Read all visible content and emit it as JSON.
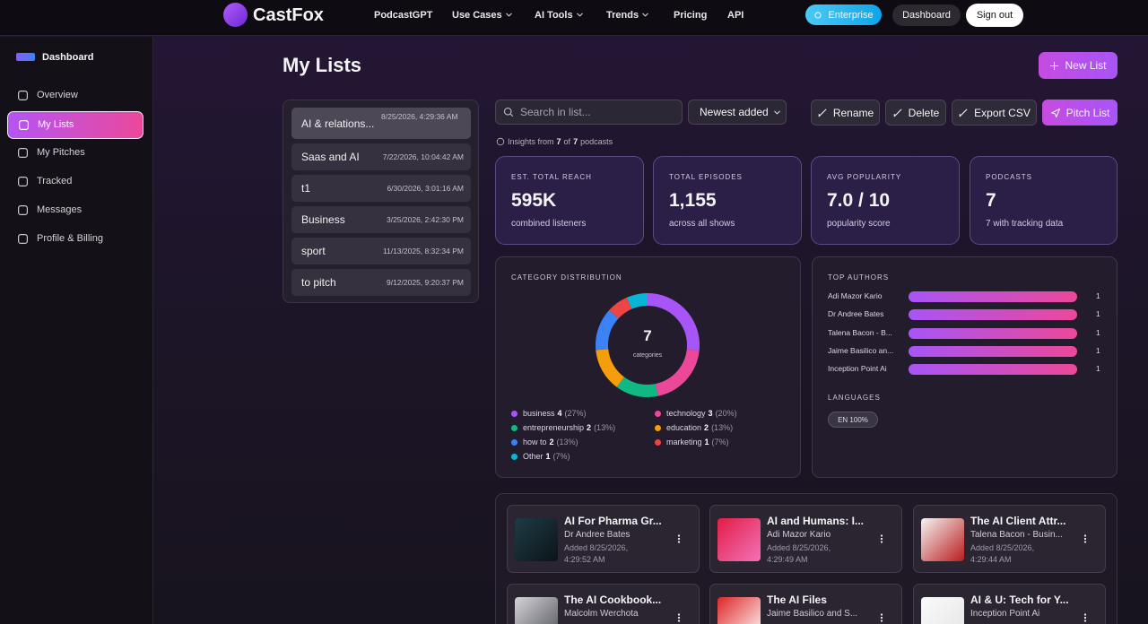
{
  "nav": {
    "brand": "CastFox",
    "links": [
      "PodcastGPT",
      "Use Cases",
      "AI Tools",
      "Trends",
      "Pricing",
      "API"
    ],
    "enterprise": "Enterprise",
    "dashboard": "Dashboard",
    "sign_out": "Sign out"
  },
  "sidebar": {
    "title": "Dashboard",
    "items": [
      "Overview",
      "My Lists",
      "My Pitches",
      "Tracked",
      "Messages",
      "Profile & Billing"
    ]
  },
  "header": {
    "title": "My Lists",
    "new_list": "New List"
  },
  "lists": [
    {
      "name": "AI & relations...",
      "date": "8/25/2026, 4:29:36 AM"
    },
    {
      "name": "Saas and AI",
      "date": "7/22/2026, 10:04:42 AM"
    },
    {
      "name": "t1",
      "date": "6/30/2026, 3:01:16 AM"
    },
    {
      "name": "Business",
      "date": "3/25/2026, 2:42:30 PM"
    },
    {
      "name": "sport",
      "date": "11/13/2025, 8:32:34 PM"
    },
    {
      "name": "to pitch",
      "date": "9/12/2025, 9:20:37 PM"
    }
  ],
  "toolbar": {
    "search": "Search in list...",
    "sort": "Newest added",
    "rename": "Rename",
    "delete": "Delete",
    "export": "Export CSV",
    "pitch": "Pitch List"
  },
  "insights": {
    "prefix": "Insights from",
    "count": 7,
    "of": "of",
    "total": 7,
    "suffix": "podcasts"
  },
  "stats": [
    {
      "label": "EST. TOTAL REACH",
      "value": "595K",
      "sub": "combined listeners"
    },
    {
      "label": "TOTAL EPISODES",
      "value": "1,155",
      "sub": "across all shows"
    },
    {
      "label": "AVG POPULARITY",
      "value": "7.0 / 10",
      "sub": "popularity score"
    },
    {
      "label": "PODCASTS",
      "value": "7",
      "sub": "7 with tracking data"
    }
  ],
  "category_chart": {
    "type": "pie",
    "title": "CATEGORY DISTRIBUTION",
    "total": 7,
    "total_label": "categories",
    "categories": [
      "business",
      "technology",
      "entrepreneurship",
      "education",
      "how to",
      "marketing",
      "Other"
    ],
    "counts": [
      4,
      3,
      2,
      2,
      2,
      1,
      1
    ],
    "percent_labels": [
      "(27%)",
      "(20%)",
      "(13%)",
      "(13%)",
      "(13%)",
      "(7%)",
      "(7%)"
    ],
    "colors": [
      "#a855f7",
      "#ec4899",
      "#10b981",
      "#f59e0b",
      "#3b82f6",
      "#ef4444",
      "#06b6d4"
    ]
  },
  "top_authors": {
    "type": "bar",
    "title": "TOP AUTHORS",
    "names": [
      "Adi Mazor Kario",
      "Dr Andree Bates",
      "Talena Bacon - B...",
      "Jaime Basilico an...",
      "Inception Point Ai"
    ],
    "counts": [
      1,
      1,
      1,
      1,
      1
    ]
  },
  "languages": {
    "title": "LANGUAGES",
    "items": [
      "EN 100%"
    ]
  },
  "podcasts": [
    {
      "title": "AI For Pharma Gr...",
      "author": "Dr Andree Bates",
      "added": "Added 8/25/2026, 4:29:52 AM"
    },
    {
      "title": "AI and Humans: I...",
      "author": "Adi Mazor Kario",
      "added": "Added 8/25/2026, 4:29:49 AM"
    },
    {
      "title": "The AI Client Attr...",
      "author": "Talena Bacon - Busin...",
      "added": "Added 8/25/2026, 4:29:44 AM"
    },
    {
      "title": "The AI Cookbook...",
      "author": "Malcolm Werchota"
    },
    {
      "title": "The AI Files",
      "author": "Jaime Basilico and S..."
    },
    {
      "title": "AI & U: Tech for Y...",
      "author": "Inception Point Ai"
    }
  ]
}
